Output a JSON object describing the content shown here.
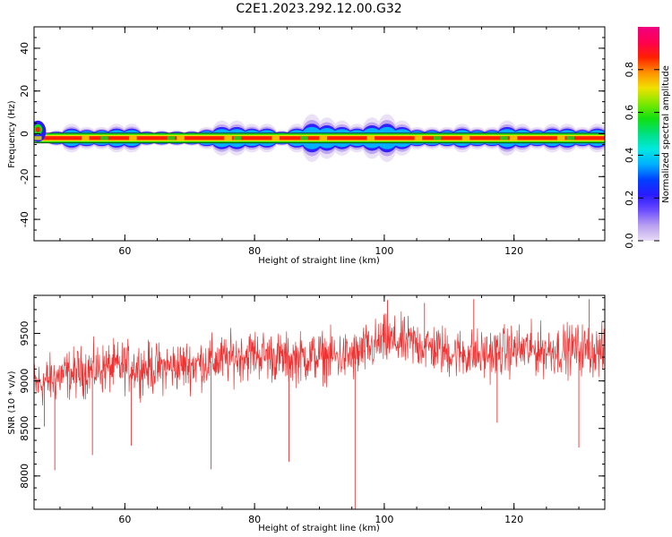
{
  "chart_data": [
    {
      "type": "heatmap",
      "title": "C2E1.2023.292.12.00.G32",
      "xlabel": "Height of straight line (km)",
      "ylabel": "Frequency (Hz)",
      "xlim": [
        46,
        134
      ],
      "ylim": [
        -50,
        50
      ],
      "xticks": [
        60,
        80,
        100,
        120
      ],
      "yticks": [
        -40,
        -20,
        0,
        20,
        40
      ],
      "colorbar": {
        "label": "Normalized spectral amplitude",
        "range": [
          0,
          1
        ],
        "ticks": [
          "0.0",
          "0.2",
          "0.4",
          "0.6",
          "0.8"
        ],
        "colors": [
          "#e8dcf5",
          "#b9a0f0",
          "#6a4cff",
          "#2a1aff",
          "#0040ff",
          "#00b0ff",
          "#00e8e0",
          "#00e080",
          "#10e010",
          "#80e800",
          "#f0e000",
          "#ff9000",
          "#ff2000",
          "#ff0050",
          "#f00080"
        ]
      },
      "band": {
        "center_frequency_hz": -2,
        "tone_frequency_hz": 2,
        "envelope_hz": [
          0,
          1,
          3,
          2,
          2,
          3,
          3,
          1,
          1,
          1,
          1,
          2,
          4,
          4,
          3,
          3,
          1,
          3,
          6,
          5,
          4,
          3,
          5,
          6,
          4,
          2,
          2,
          2,
          3,
          2,
          2,
          4,
          3,
          2,
          3,
          3,
          2,
          3
        ]
      },
      "grid": false
    },
    {
      "type": "line",
      "xlabel": "Height of straight line (km)",
      "ylabel": "SNR (10 * v/v)",
      "xlim": [
        46,
        134
      ],
      "ylim": [
        7650,
        9900
      ],
      "xticks": [
        60,
        80,
        100,
        120
      ],
      "yticks": [
        8000,
        8500,
        9000,
        9500
      ],
      "color": "#ee3333",
      "trend_x": [
        46,
        50,
        55,
        60,
        65,
        70,
        75,
        80,
        85,
        90,
        95,
        100,
        105,
        110,
        115,
        120,
        125,
        130,
        134
      ],
      "trend_y": [
        8950,
        9050,
        9120,
        9150,
        9130,
        9170,
        9220,
        9290,
        9230,
        9260,
        9250,
        9420,
        9390,
        9300,
        9270,
        9330,
        9320,
        9340,
        9300
      ],
      "spikes": [
        {
          "x": 47.6,
          "y": 8520
        },
        {
          "x": 49.2,
          "y": 8060
        },
        {
          "x": 55.0,
          "y": 8220
        },
        {
          "x": 61.0,
          "y": 8320
        },
        {
          "x": 73.3,
          "y": 8070
        },
        {
          "x": 85.3,
          "y": 8150
        },
        {
          "x": 95.5,
          "y": 7650
        },
        {
          "x": 117.4,
          "y": 8560
        },
        {
          "x": 130.0,
          "y": 8300
        },
        {
          "x": 100.5,
          "y": 9850
        },
        {
          "x": 106.2,
          "y": 9820
        },
        {
          "x": 113.8,
          "y": 9860
        },
        {
          "x": 131.6,
          "y": 9860
        }
      ],
      "grid": false
    }
  ]
}
